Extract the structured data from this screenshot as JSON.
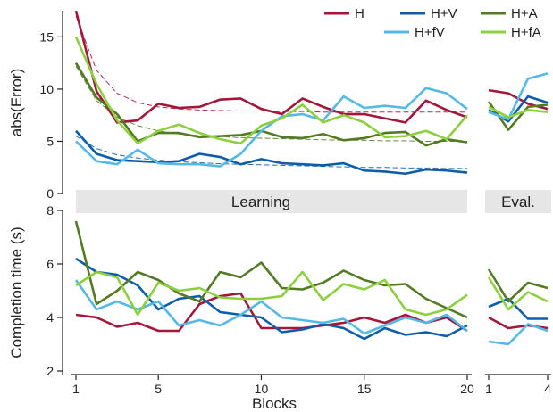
{
  "chart_data": [
    {
      "panel": "top",
      "type": "line",
      "ylabel": "abs(Error)",
      "ylim": [
        0,
        17
      ],
      "yticks": [
        0,
        5,
        10,
        15
      ],
      "band": {
        "learning": "Learning",
        "eval": "Eval."
      },
      "learning": {
        "x": [
          1,
          2,
          3,
          4,
          5,
          6,
          7,
          8,
          9,
          10,
          11,
          12,
          13,
          14,
          15,
          16,
          17,
          18,
          19,
          20
        ],
        "series": [
          {
            "name": "H",
            "color": "#a3173b",
            "values": [
              17.5,
              9.8,
              6.8,
              7.0,
              8.6,
              8.2,
              8.3,
              9.0,
              9.1,
              8.1,
              7.6,
              9.1,
              8.3,
              7.6,
              7.6,
              7.2,
              6.8,
              8.9,
              8.0,
              7.3
            ]
          },
          {
            "name": "H+V",
            "color": "#0d5ea8",
            "values": [
              6.0,
              3.8,
              3.2,
              3.1,
              3.0,
              3.1,
              3.8,
              3.5,
              2.8,
              3.3,
              2.9,
              2.8,
              2.7,
              2.9,
              2.2,
              2.1,
              1.9,
              2.3,
              2.2,
              2.0
            ]
          },
          {
            "name": "H+A",
            "color": "#557a24",
            "values": [
              12.5,
              9.2,
              7.6,
              5.0,
              5.8,
              5.8,
              5.4,
              5.5,
              5.6,
              6.0,
              5.4,
              5.3,
              5.7,
              5.1,
              5.3,
              5.8,
              5.9,
              4.6,
              5.2,
              4.9
            ]
          },
          {
            "name": "H+fV",
            "color": "#55b8e6",
            "values": [
              5.0,
              3.1,
              2.8,
              4.2,
              2.9,
              2.8,
              2.8,
              2.6,
              3.8,
              6.0,
              7.4,
              7.6,
              7.0,
              9.3,
              8.2,
              8.4,
              8.2,
              10.1,
              9.6,
              8.1
            ]
          },
          {
            "name": "H+fA",
            "color": "#8ccf3f",
            "values": [
              15.0,
              10.5,
              7.0,
              4.8,
              6.0,
              6.6,
              5.8,
              5.2,
              4.8,
              6.5,
              7.2,
              8.5,
              6.8,
              7.5,
              6.8,
              5.4,
              5.5,
              6.0,
              5.2,
              7.5
            ]
          }
        ],
        "trends": [
          {
            "name": "H",
            "color": "#a3173b",
            "values": [
              17.0,
              11.8,
              9.6,
              8.7,
              8.3,
              8.1,
              8.0,
              7.95,
              7.9,
              7.9,
              7.85,
              7.85,
              7.8,
              7.8,
              7.8,
              7.8,
              7.8,
              7.8,
              7.8,
              7.8
            ]
          },
          {
            "name": "H+V",
            "color": "#0d5ea8",
            "values": [
              5.5,
              4.3,
              3.7,
              3.4,
              3.2,
              3.05,
              2.95,
              2.85,
              2.8,
              2.75,
              2.7,
              2.65,
              2.6,
              2.55,
              2.5,
              2.5,
              2.45,
              2.45,
              2.4,
              2.4
            ]
          },
          {
            "name": "H+A",
            "color": "#557a24",
            "values": [
              12.2,
              8.9,
              7.3,
              6.5,
              6.0,
              5.7,
              5.55,
              5.45,
              5.35,
              5.3,
              5.25,
              5.2,
              5.15,
              5.1,
              5.1,
              5.05,
              5.05,
              5.0,
              5.0,
              5.0
            ]
          }
        ]
      },
      "eval": {
        "x": [
          1,
          2,
          3,
          4
        ],
        "series": [
          {
            "name": "H",
            "color": "#a3173b",
            "values": [
              9.9,
              9.6,
              8.6,
              8.1
            ]
          },
          {
            "name": "H+V",
            "color": "#0d5ea8",
            "values": [
              8.0,
              6.9,
              9.3,
              8.7
            ]
          },
          {
            "name": "H+A",
            "color": "#557a24",
            "values": [
              8.8,
              6.1,
              8.3,
              8.5
            ]
          },
          {
            "name": "H+fV",
            "color": "#55b8e6",
            "values": [
              7.8,
              7.1,
              11.0,
              11.5
            ]
          },
          {
            "name": "H+fA",
            "color": "#8ccf3f",
            "values": [
              8.3,
              7.3,
              8.0,
              7.8
            ]
          }
        ]
      }
    },
    {
      "panel": "bottom",
      "type": "line",
      "ylabel": "Completion time (s)",
      "xlabel": "Blocks",
      "ylim": [
        2,
        8
      ],
      "yticks": [
        2,
        4,
        6,
        8
      ],
      "learning": {
        "x": [
          1,
          2,
          3,
          4,
          5,
          6,
          7,
          8,
          9,
          10,
          11,
          12,
          13,
          14,
          15,
          16,
          17,
          18,
          19,
          20
        ],
        "xticks": [
          1,
          5,
          10,
          15,
          20
        ],
        "series": [
          {
            "name": "H",
            "color": "#a3173b",
            "values": [
              4.1,
              4.0,
              3.65,
              3.8,
              3.5,
              3.5,
              4.5,
              4.8,
              4.9,
              3.6,
              3.6,
              3.6,
              3.7,
              3.8,
              4.0,
              3.8,
              4.1,
              3.8,
              4.0,
              3.5
            ]
          },
          {
            "name": "H+V",
            "color": "#0d5ea8",
            "values": [
              6.2,
              5.7,
              5.6,
              5.2,
              4.3,
              4.7,
              4.8,
              4.2,
              4.1,
              4.0,
              3.45,
              3.55,
              3.75,
              3.6,
              3.2,
              3.6,
              3.35,
              3.45,
              3.3,
              3.7
            ]
          },
          {
            "name": "H+A",
            "color": "#557a24",
            "values": [
              7.6,
              4.5,
              5.0,
              5.7,
              5.4,
              4.9,
              4.6,
              5.7,
              5.5,
              6.05,
              5.1,
              5.05,
              5.3,
              5.75,
              5.4,
              5.2,
              5.25,
              4.7,
              4.35,
              4.0
            ]
          },
          {
            "name": "H+fV",
            "color": "#55b8e6",
            "values": [
              5.4,
              4.3,
              4.6,
              4.3,
              4.6,
              3.7,
              3.9,
              3.7,
              4.1,
              4.6,
              4.0,
              3.9,
              3.8,
              3.95,
              3.4,
              3.7,
              4.0,
              3.8,
              4.1,
              3.5
            ]
          },
          {
            "name": "H+fA",
            "color": "#8ccf3f",
            "values": [
              5.2,
              5.7,
              5.5,
              4.1,
              5.3,
              5.0,
              5.1,
              4.75,
              4.7,
              4.7,
              4.8,
              5.7,
              4.65,
              5.25,
              5.05,
              5.4,
              4.3,
              4.1,
              4.3,
              4.85
            ]
          }
        ]
      },
      "eval": {
        "x": [
          1,
          2,
          3,
          4
        ],
        "xticks": [
          1,
          4
        ],
        "series": [
          {
            "name": "H",
            "color": "#a3173b",
            "values": [
              4.0,
              3.6,
              3.7,
              3.6
            ]
          },
          {
            "name": "H+V",
            "color": "#0d5ea8",
            "values": [
              4.4,
              4.7,
              3.95,
              3.95
            ]
          },
          {
            "name": "H+A",
            "color": "#557a24",
            "values": [
              5.8,
              4.6,
              5.3,
              5.1
            ]
          },
          {
            "name": "H+fV",
            "color": "#55b8e6",
            "values": [
              3.1,
              3.0,
              3.75,
              3.5
            ]
          },
          {
            "name": "H+fA",
            "color": "#8ccf3f",
            "values": [
              5.5,
              4.3,
              4.95,
              4.6
            ]
          }
        ]
      }
    }
  ],
  "legend": [
    {
      "name": "H",
      "color": "#a3173b"
    },
    {
      "name": "H+V",
      "color": "#0d5ea8"
    },
    {
      "name": "H+A",
      "color": "#557a24"
    },
    {
      "name": "H+fV",
      "color": "#55b8e6"
    },
    {
      "name": "H+fA",
      "color": "#8ccf3f"
    }
  ]
}
